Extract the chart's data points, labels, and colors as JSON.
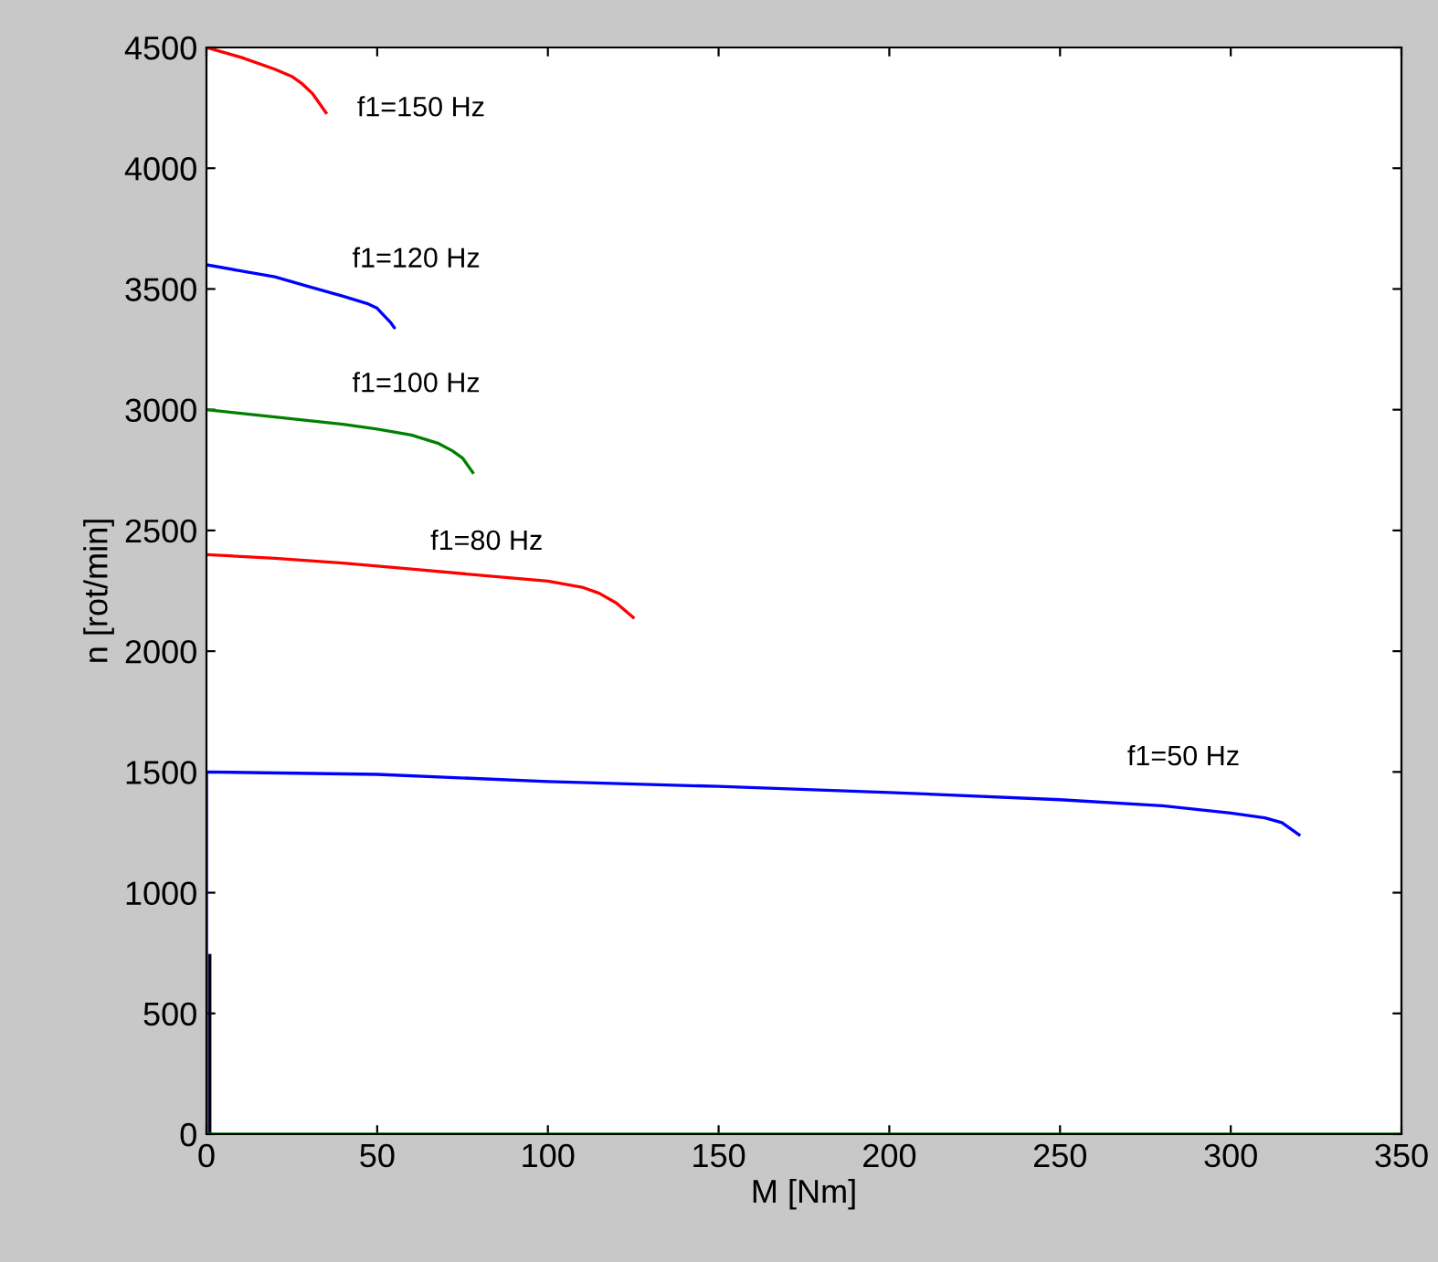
{
  "chart_data": {
    "type": "line",
    "xlabel": "M [Nm]",
    "ylabel": "n [rot/min]",
    "xlim": [
      0,
      350
    ],
    "ylim": [
      0,
      4500
    ],
    "xticks": [
      0,
      50,
      100,
      150,
      200,
      250,
      300,
      350
    ],
    "yticks": [
      0,
      500,
      1000,
      1500,
      2000,
      2500,
      3000,
      3500,
      4000,
      4500
    ],
    "grid": false,
    "line_style": "solid",
    "marker": "none",
    "series": [
      {
        "name": "f1=150 Hz",
        "color": "#ff0000",
        "x": [
          0,
          10,
          20,
          25,
          28,
          31,
          33,
          35
        ],
        "values": [
          4500,
          4460,
          4410,
          4380,
          4350,
          4310,
          4270,
          4230
        ]
      },
      {
        "name": "f1=120 Hz",
        "color": "#0000ff",
        "x": [
          0,
          10,
          20,
          30,
          40,
          47,
          50,
          52,
          54,
          55
        ],
        "values": [
          3600,
          3575,
          3550,
          3510,
          3470,
          3440,
          3420,
          3390,
          3360,
          3340
        ]
      },
      {
        "name": "f1=100 Hz",
        "color": "#008000",
        "x": [
          0,
          10,
          20,
          30,
          40,
          50,
          60,
          68,
          72,
          75,
          78
        ],
        "values": [
          3000,
          2985,
          2970,
          2955,
          2940,
          2920,
          2895,
          2860,
          2830,
          2800,
          2740
        ]
      },
      {
        "name": "f1=80 Hz",
        "color": "#ff0000",
        "x": [
          0,
          20,
          40,
          60,
          80,
          100,
          110,
          115,
          120,
          125
        ],
        "values": [
          2400,
          2385,
          2365,
          2340,
          2315,
          2290,
          2265,
          2240,
          2200,
          2140
        ]
      },
      {
        "name": "f1=50 Hz",
        "color": "#0000ff",
        "x": [
          0,
          0,
          50,
          100,
          150,
          200,
          250,
          280,
          300,
          310,
          315,
          320
        ],
        "values": [
          0,
          1500,
          1490,
          1460,
          1440,
          1415,
          1385,
          1360,
          1330,
          1310,
          1290,
          1240
        ]
      },
      {
        "color": "#000000",
        "x": [
          1,
          1
        ],
        "values": [
          0,
          740
        ]
      },
      {
        "color": "#008000",
        "x": [
          0,
          350
        ],
        "values": [
          0,
          0
        ]
      }
    ]
  }
}
